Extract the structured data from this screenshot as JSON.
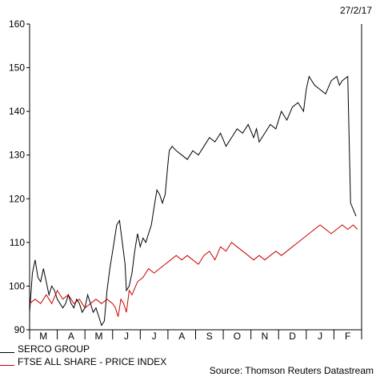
{
  "date_label": "27/2/17",
  "source": "Source: Thomson Reuters Datastream",
  "chart_data": {
    "type": "line",
    "ylim": [
      90,
      160
    ],
    "yticks": [
      90,
      100,
      110,
      120,
      130,
      140,
      150,
      160
    ],
    "x_month_labels": [
      "M",
      "A",
      "M",
      "J",
      "J",
      "A",
      "S",
      "O",
      "N",
      "D",
      "J",
      "F"
    ],
    "x_range": [
      0,
      12
    ],
    "grid": false,
    "legend_position": "bottom-left",
    "series": [
      {
        "name": "SERCO GROUP",
        "color": "#000000",
        "x": [
          0.0,
          0.1,
          0.2,
          0.3,
          0.4,
          0.5,
          0.6,
          0.7,
          0.8,
          0.9,
          1.0,
          1.1,
          1.2,
          1.3,
          1.4,
          1.5,
          1.6,
          1.7,
          1.8,
          1.9,
          2.0,
          2.1,
          2.2,
          2.3,
          2.4,
          2.5,
          2.6,
          2.7,
          2.8,
          2.9,
          3.0,
          3.05,
          3.15,
          3.25,
          3.35,
          3.45,
          3.5,
          3.6,
          3.7,
          3.8,
          3.9,
          4.0,
          4.1,
          4.2,
          4.3,
          4.4,
          4.5,
          4.6,
          4.7,
          4.8,
          4.9,
          5.0,
          5.05,
          5.15,
          5.3,
          5.5,
          5.7,
          5.9,
          6.1,
          6.3,
          6.5,
          6.7,
          6.9,
          7.1,
          7.3,
          7.5,
          7.7,
          7.9,
          8.1,
          8.2,
          8.3,
          8.5,
          8.7,
          8.9,
          9.1,
          9.3,
          9.5,
          9.7,
          9.9,
          10.0,
          10.1,
          10.3,
          10.5,
          10.7,
          10.9,
          11.1,
          11.2,
          11.3,
          11.5,
          11.6,
          11.8
        ],
        "values": [
          94,
          103,
          106,
          102,
          101,
          104,
          101,
          98,
          100,
          99,
          97,
          96,
          95,
          96,
          98,
          96,
          95,
          97,
          96,
          94,
          95,
          98,
          96,
          94,
          95,
          93,
          91,
          92,
          99,
          104,
          108,
          110,
          114,
          115,
          110,
          105,
          99,
          100,
          103,
          108,
          112,
          109,
          111,
          110,
          112,
          114,
          118,
          122,
          121,
          119,
          121,
          128,
          131,
          132,
          131,
          130,
          129,
          131,
          130,
          132,
          134,
          133,
          135,
          132,
          134,
          136,
          135,
          137,
          134,
          136,
          133,
          135,
          137,
          136,
          140,
          138,
          141,
          142,
          140,
          145,
          148,
          146,
          145,
          144,
          147,
          148,
          146,
          147,
          148,
          119,
          116
        ]
      },
      {
        "name": "FTSE ALL SHARE - PRICE INDEX",
        "color": "#cc0000",
        "x": [
          0.0,
          0.2,
          0.4,
          0.6,
          0.8,
          1.0,
          1.2,
          1.4,
          1.6,
          1.8,
          2.0,
          2.2,
          2.4,
          2.6,
          2.8,
          3.0,
          3.1,
          3.2,
          3.3,
          3.4,
          3.5,
          3.6,
          3.7,
          3.9,
          4.1,
          4.3,
          4.5,
          4.7,
          4.9,
          5.1,
          5.3,
          5.5,
          5.7,
          5.9,
          6.1,
          6.3,
          6.5,
          6.7,
          6.9,
          7.1,
          7.3,
          7.5,
          7.7,
          7.9,
          8.1,
          8.3,
          8.5,
          8.7,
          8.9,
          9.1,
          9.3,
          9.5,
          9.7,
          9.9,
          10.1,
          10.3,
          10.5,
          10.7,
          10.9,
          11.1,
          11.3,
          11.5,
          11.7,
          11.85
        ],
        "values": [
          96,
          97,
          96,
          98,
          96,
          99,
          97,
          98,
          96,
          97,
          95,
          96,
          97,
          96,
          97,
          96,
          95,
          93,
          97,
          96,
          94,
          99,
          98,
          101,
          102,
          104,
          103,
          104,
          105,
          106,
          107,
          106,
          107,
          106,
          105,
          107,
          108,
          106,
          109,
          108,
          110,
          109,
          108,
          107,
          106,
          107,
          106,
          107,
          108,
          107,
          108,
          109,
          110,
          111,
          112,
          113,
          114,
          113,
          112,
          113,
          114,
          113,
          114,
          113
        ]
      }
    ]
  }
}
